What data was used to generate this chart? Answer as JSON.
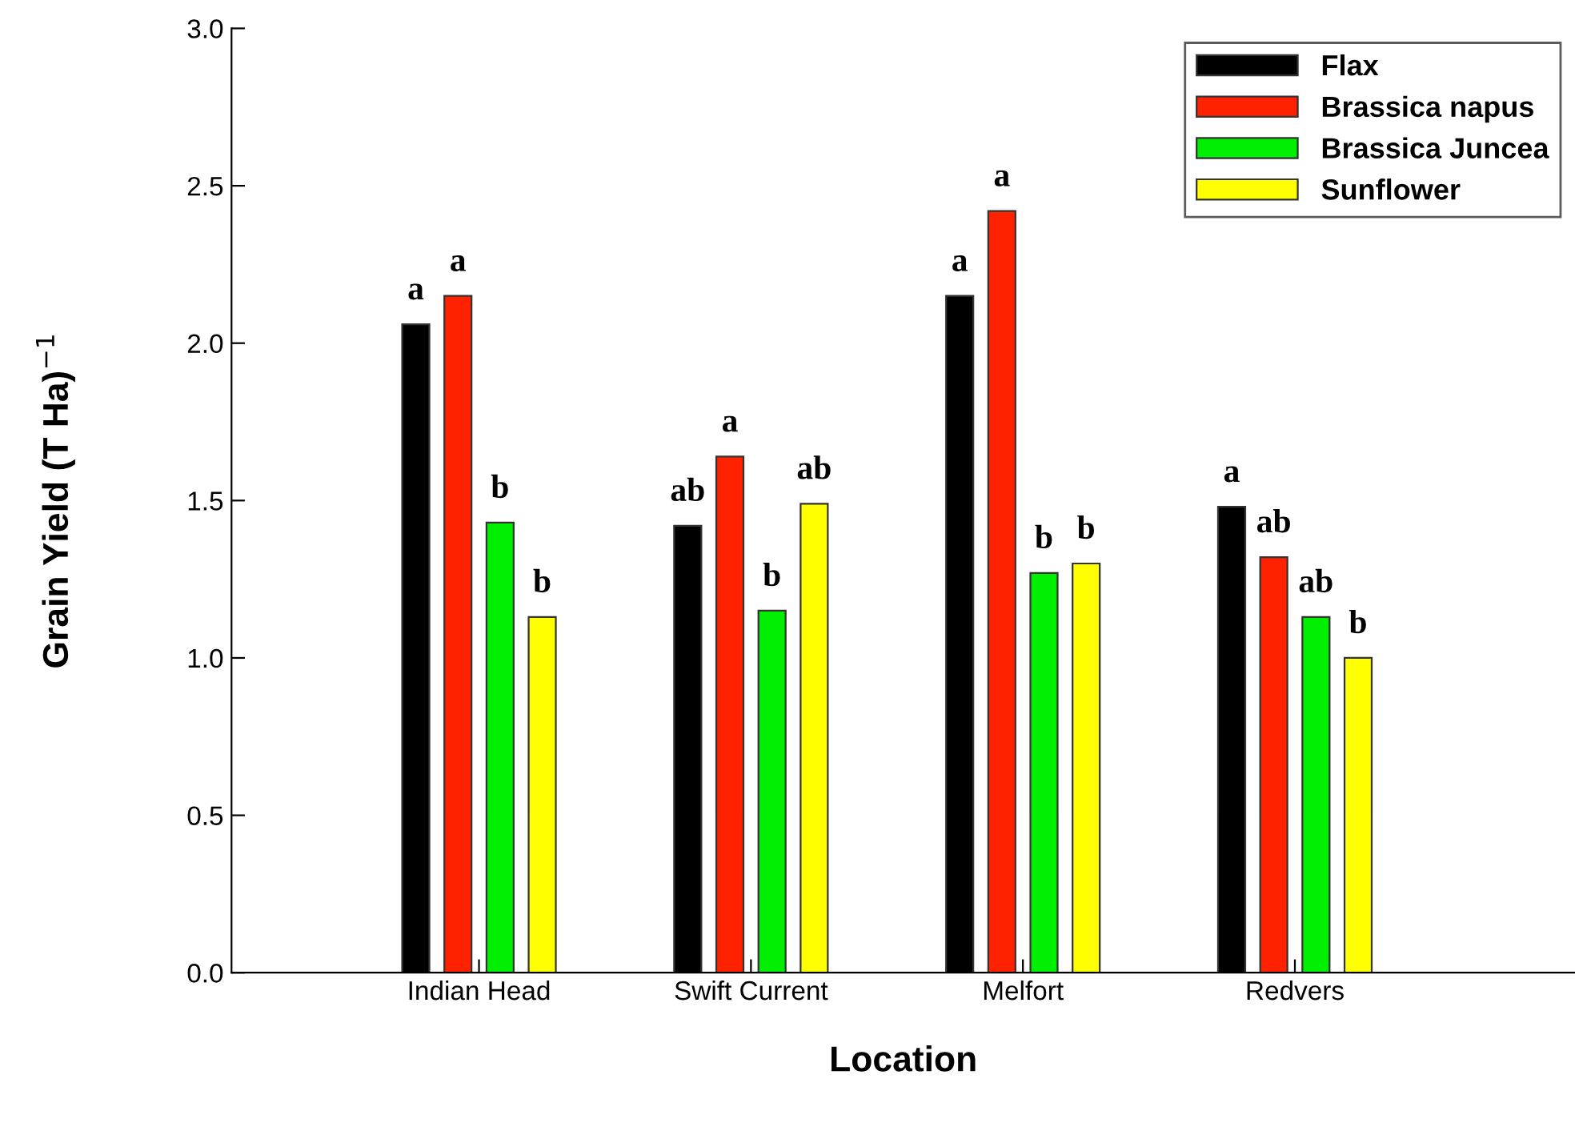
{
  "chart_data": {
    "type": "bar",
    "xlabel": "Location",
    "ylabel": "Grain Yield (T Ha)$^{−1}$",
    "categories": [
      "Indian Head",
      "Swift Current",
      "Melfort",
      "Redvers"
    ],
    "series": [
      {
        "name": "Flax",
        "color": "#000000",
        "values": [
          2.06,
          1.42,
          2.15,
          1.48
        ]
      },
      {
        "name": "Brassica napus",
        "color": "#ff2200",
        "values": [
          2.15,
          1.64,
          2.42,
          1.32
        ]
      },
      {
        "name": "Brassica Juncea",
        "color": "#00ee00",
        "values": [
          1.43,
          1.15,
          1.27,
          1.13
        ]
      },
      {
        "name": "Sunflower",
        "color": "#ffff00",
        "values": [
          1.13,
          1.49,
          1.3,
          1.0
        ]
      }
    ],
    "ylim": [
      0,
      3
    ],
    "yticks": [
      {
        "value": 0,
        "label": "0.0"
      },
      0.5,
      {
        "value": 1,
        "label": "1.0"
      },
      1.5,
      {
        "value": 2,
        "label": "2.0"
      },
      2.5,
      {
        "value": 3,
        "label": "3.0"
      }
    ],
    "legend": "top right",
    "grid": false,
    "annotations": [
      "a",
      "a",
      "b",
      "b",
      "ab",
      "a",
      "b",
      "ab",
      "a",
      "a",
      "b",
      "b",
      "a",
      "ab",
      "ab",
      "b"
    ]
  }
}
